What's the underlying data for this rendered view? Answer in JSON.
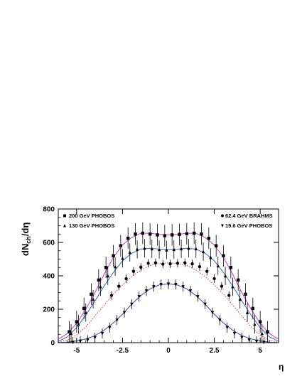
{
  "chart_data": {
    "type": "scatter",
    "title": "",
    "xlabel": "η",
    "ylabel": "dN",
    "ylabel_sub": "ch",
    "ylabel_tail": "/dη",
    "xlim": [
      -6.0,
      6.0
    ],
    "ylim": [
      0,
      800
    ],
    "xticks": [
      -5,
      -2.5,
      0,
      2.5,
      5
    ],
    "xtick_labels": [
      "-5",
      "-2.5",
      "0",
      "2.5",
      "5"
    ],
    "yticks": [
      0,
      200,
      400,
      600,
      800
    ],
    "ytick_labels": [
      "0",
      "200",
      "400",
      "600",
      "800"
    ],
    "grid": false,
    "legend": [
      {
        "label": "200 GeV PHOBOS",
        "marker": "square",
        "placement": "top-left"
      },
      {
        "label": "130 GeV PHOBOS",
        "marker": "triangle-up",
        "placement": "top-left"
      },
      {
        "label": "62.4 GeV BRAHMS",
        "marker": "circle",
        "placement": "top-right"
      },
      {
        "label": "19.6 GeV PHOBOS",
        "marker": "triangle-down",
        "placement": "top-right"
      }
    ],
    "series": [
      {
        "name": "200 GeV PHOBOS",
        "marker": "square",
        "color": "#000000",
        "x": [
          -5.4,
          -5.0,
          -4.6,
          -4.2,
          -3.8,
          -3.4,
          -3.0,
          -2.6,
          -2.2,
          -1.8,
          -1.4,
          -1.0,
          -0.6,
          -0.2,
          0.2,
          0.6,
          1.0,
          1.4,
          1.8,
          2.2,
          2.6,
          3.0,
          3.4,
          3.8,
          4.2,
          4.6,
          5.0,
          5.4
        ],
        "y": [
          65,
          125,
          205,
          290,
          375,
          450,
          520,
          580,
          625,
          650,
          655,
          650,
          645,
          640,
          645,
          648,
          652,
          655,
          650,
          625,
          580,
          520,
          450,
          375,
          290,
          205,
          125,
          65
        ],
        "yerr": 65
      },
      {
        "name": "130 GeV PHOBOS",
        "marker": "triangle-up",
        "color": "#000000",
        "x": [
          -5.3,
          -4.9,
          -4.5,
          -4.1,
          -3.7,
          -3.3,
          -2.9,
          -2.5,
          -2.1,
          -1.7,
          -1.3,
          -0.9,
          -0.5,
          -0.1,
          0.3,
          0.7,
          1.1,
          1.5,
          1.9,
          2.3,
          2.7,
          3.1,
          3.5,
          3.9,
          4.3,
          4.7,
          5.1
        ],
        "y": [
          55,
          110,
          180,
          260,
          335,
          400,
          455,
          505,
          540,
          560,
          565,
          562,
          558,
          555,
          558,
          562,
          565,
          562,
          545,
          510,
          460,
          400,
          335,
          260,
          180,
          110,
          55
        ],
        "yerr": 55
      },
      {
        "name": "62.4 GeV BRAHMS",
        "marker": "circle",
        "color": "#000000",
        "x": [
          -3.1,
          -2.7,
          -2.3,
          -1.9,
          -1.5,
          -1.1,
          -0.7,
          -0.3,
          0.1,
          0.5,
          0.9,
          1.3,
          1.7,
          2.1,
          2.5,
          2.9,
          3.3
        ],
        "y": [
          283,
          338,
          383,
          427,
          452,
          475,
          478,
          470,
          472,
          475,
          478,
          472,
          455,
          427,
          383,
          338,
          283
        ],
        "yerr": 25
      },
      {
        "name": "19.6 GeV PHOBOS",
        "marker": "triangle-down",
        "color": "#000000",
        "x": [
          -5.2,
          -4.8,
          -4.4,
          -4.0,
          -3.6,
          -3.2,
          -2.8,
          -2.4,
          -2.0,
          -1.6,
          -1.2,
          -0.8,
          -0.4,
          0.0,
          0.4,
          0.8,
          1.2,
          1.6,
          2.0,
          2.4,
          2.8,
          3.2,
          3.6,
          4.0,
          4.4,
          4.8,
          5.2
        ],
        "y": [
          2,
          8,
          15,
          30,
          55,
          90,
          135,
          180,
          230,
          275,
          310,
          335,
          348,
          350,
          348,
          335,
          310,
          275,
          230,
          180,
          135,
          90,
          55,
          30,
          15,
          8,
          2
        ],
        "yerr": 30
      }
    ],
    "curves": [
      {
        "name": "",
        "style": "solid",
        "color": "#cc33cc",
        "x": [
          -6.0,
          -5.5,
          -5.0,
          -4.5,
          -4.0,
          -3.5,
          -3.0,
          -2.5,
          -2.0,
          -1.5,
          -1.0,
          -0.5,
          0.0,
          0.5,
          1.0,
          1.5,
          2.0,
          2.5,
          3.0,
          3.5,
          4.0,
          4.5,
          5.0,
          5.5,
          6.0
        ],
        "y": [
          20,
          55,
          115,
          200,
          300,
          410,
          510,
          585,
          630,
          655,
          655,
          648,
          645,
          648,
          655,
          655,
          630,
          585,
          510,
          410,
          300,
          200,
          115,
          55,
          20
        ]
      },
      {
        "name": "",
        "style": "solid",
        "color": "#3366cc",
        "x": [
          -6.0,
          -5.5,
          -5.0,
          -4.5,
          -4.0,
          -3.5,
          -3.0,
          -2.5,
          -2.0,
          -1.5,
          -1.0,
          -0.5,
          0.0,
          0.5,
          1.0,
          1.5,
          2.0,
          2.5,
          3.0,
          3.5,
          4.0,
          4.5,
          5.0,
          5.5,
          6.0
        ],
        "y": [
          8,
          35,
          90,
          165,
          250,
          340,
          420,
          490,
          535,
          560,
          565,
          560,
          558,
          560,
          565,
          560,
          535,
          490,
          420,
          340,
          250,
          165,
          90,
          35,
          8
        ]
      },
      {
        "name": "",
        "style": "dotted",
        "color": "#e03030",
        "x": [
          -6.0,
          -5.5,
          -5.0,
          -4.5,
          -4.0,
          -3.5,
          -3.0,
          -2.5,
          -2.0,
          -1.5,
          -1.0,
          -0.5,
          0.0,
          0.5,
          1.0,
          1.5,
          2.0,
          2.5,
          3.0,
          3.5,
          4.0,
          4.5,
          5.0,
          5.5,
          6.0
        ],
        "y": [
          3,
          15,
          45,
          95,
          160,
          225,
          290,
          345,
          395,
          435,
          462,
          475,
          478,
          475,
          462,
          435,
          395,
          345,
          290,
          225,
          160,
          95,
          45,
          15,
          3
        ]
      },
      {
        "name": "",
        "style": "solid",
        "color": "#3344aa",
        "x": [
          -6.0,
          -5.5,
          -5.0,
          -4.5,
          -4.0,
          -3.5,
          -3.0,
          -2.5,
          -2.0,
          -1.5,
          -1.0,
          -0.5,
          0.0,
          0.5,
          1.0,
          1.5,
          2.0,
          2.5,
          3.0,
          3.5,
          4.0,
          4.5,
          5.0,
          5.5,
          6.0
        ],
        "y": [
          0,
          3,
          10,
          22,
          42,
          75,
          118,
          170,
          230,
          282,
          322,
          345,
          352,
          345,
          322,
          282,
          230,
          170,
          118,
          75,
          42,
          22,
          10,
          3,
          0
        ]
      }
    ]
  }
}
